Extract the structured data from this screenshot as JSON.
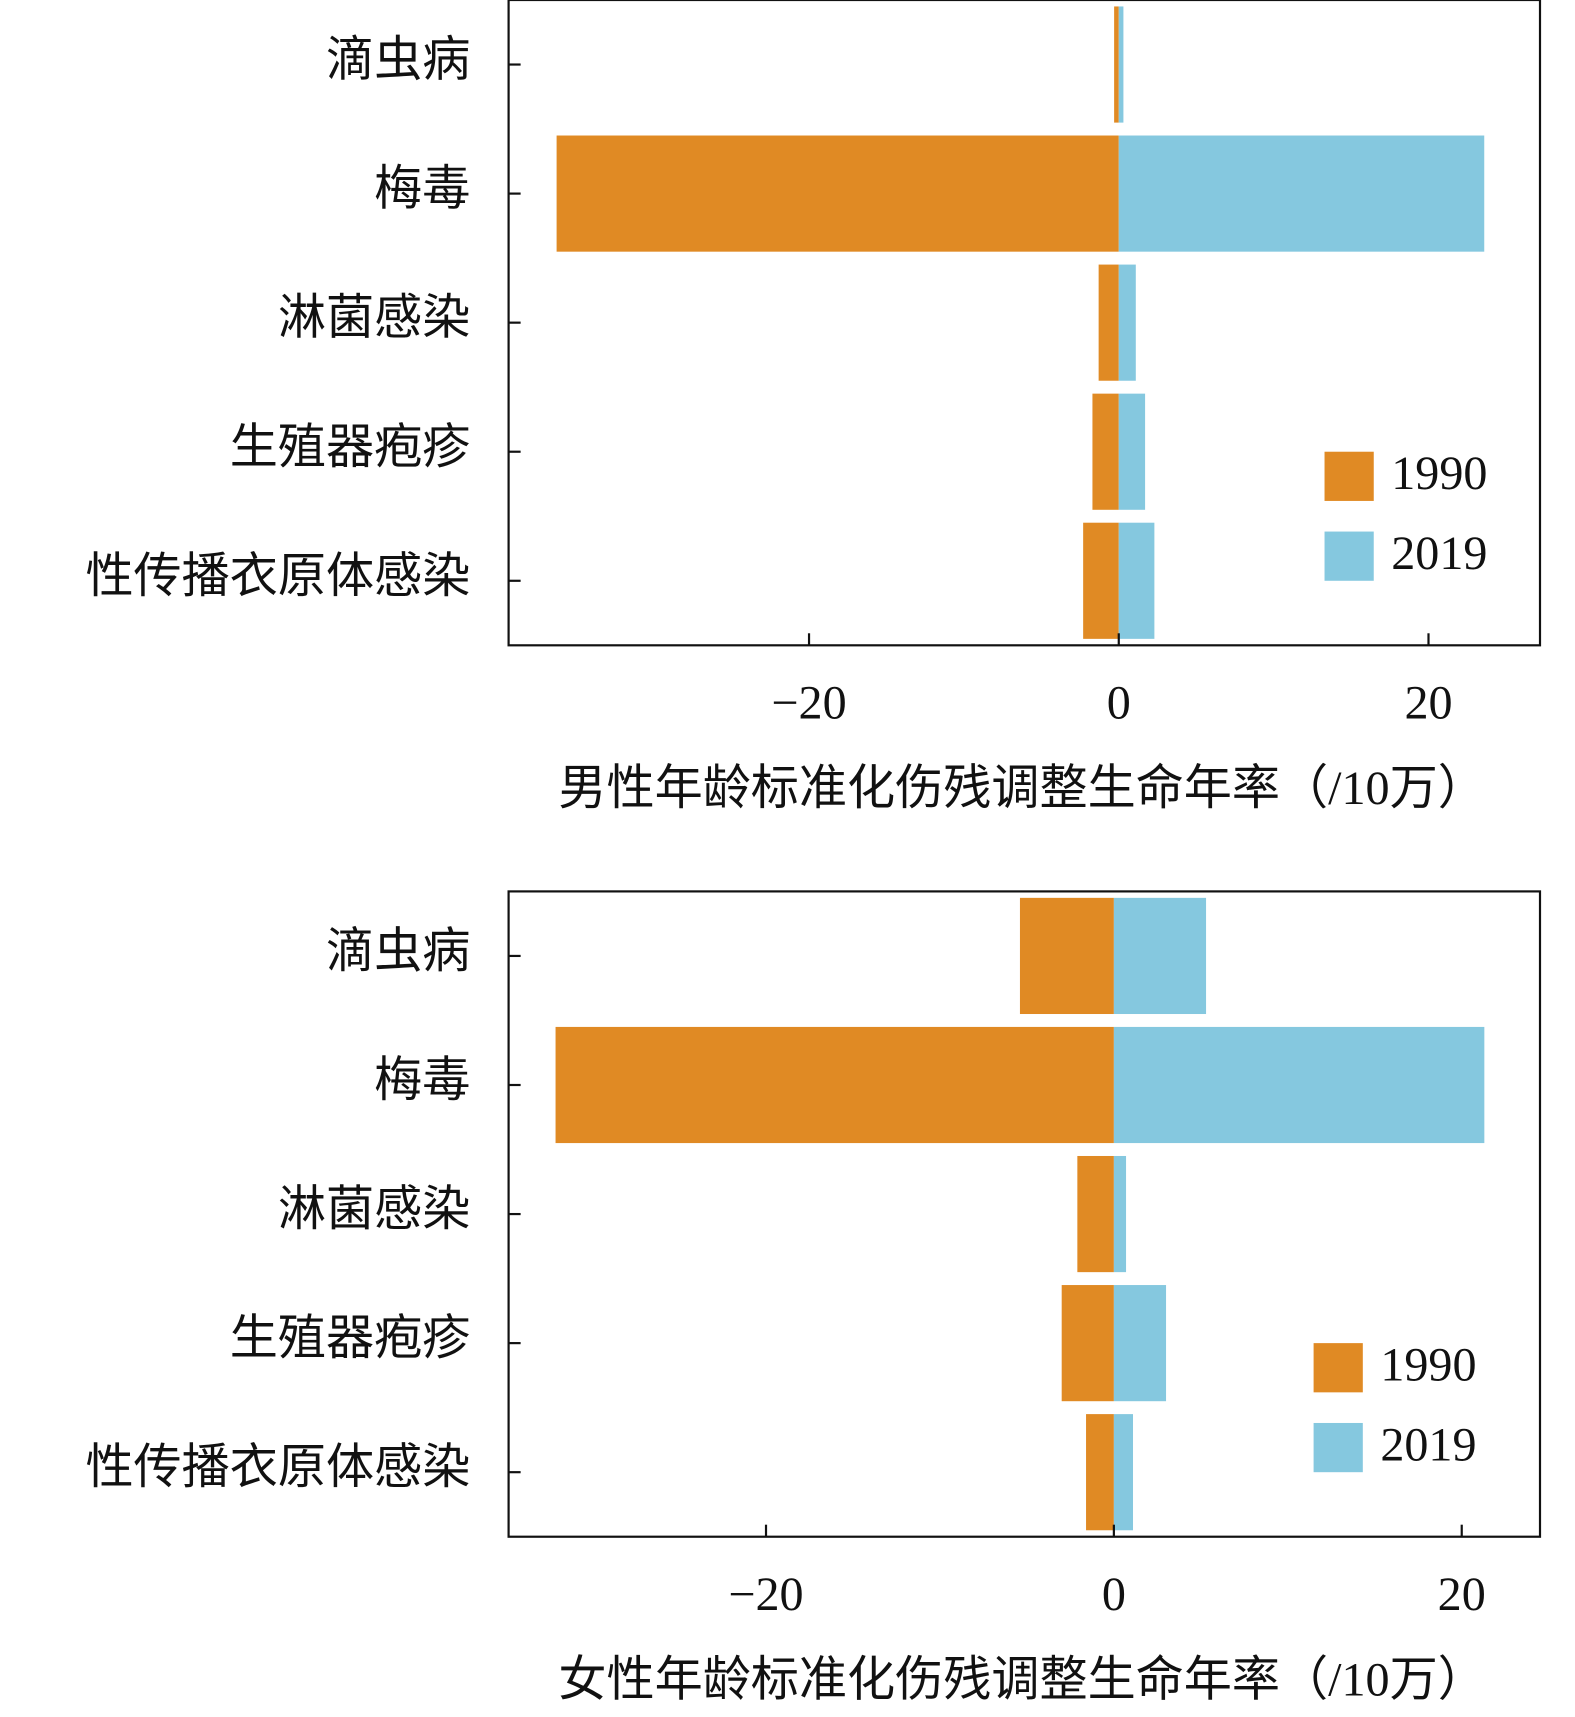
{
  "chart_data": [
    {
      "type": "bar",
      "orientation": "horizontal",
      "categories": [
        "滴虫病",
        "梅毒",
        "淋菌感染",
        "生殖器疱疹",
        "性传播衣原体感染"
      ],
      "series": [
        {
          "name": "1990",
          "color": "#e08a24",
          "values": [
            -0.3,
            -36.3,
            -1.3,
            -1.7,
            -2.3
          ]
        },
        {
          "name": "2019",
          "color": "#85c8df",
          "values": [
            0.3,
            23.6,
            1.1,
            1.7,
            2.3
          ]
        }
      ],
      "xlabel": "男性年龄标准化伤残调整生命年率（/10万）",
      "xlim": [
        -39.4,
        27.2
      ],
      "xticks": [
        {
          "value": -20,
          "label": "−20"
        },
        0,
        20
      ],
      "legend": "lower right"
    },
    {
      "type": "bar",
      "orientation": "horizontal",
      "categories": [
        "滴虫病",
        "梅毒",
        "淋菌感染",
        "生殖器疱疹",
        "性传播衣原体感染"
      ],
      "series": [
        {
          "name": "1990",
          "color": "#e08a24",
          "values": [
            -5.4,
            -32.1,
            -2.1,
            -3.0,
            -1.6
          ]
        },
        {
          "name": "2019",
          "color": "#85c8df",
          "values": [
            5.3,
            21.3,
            0.7,
            3.0,
            1.1
          ]
        }
      ],
      "xlabel": "女性年龄标准化伤残调整生命年率（/10万）",
      "xlim": [
        -34.8,
        24.5
      ],
      "xticks": [
        {
          "value": -20,
          "label": "−20"
        },
        0,
        20
      ],
      "legend": "lower right"
    }
  ]
}
